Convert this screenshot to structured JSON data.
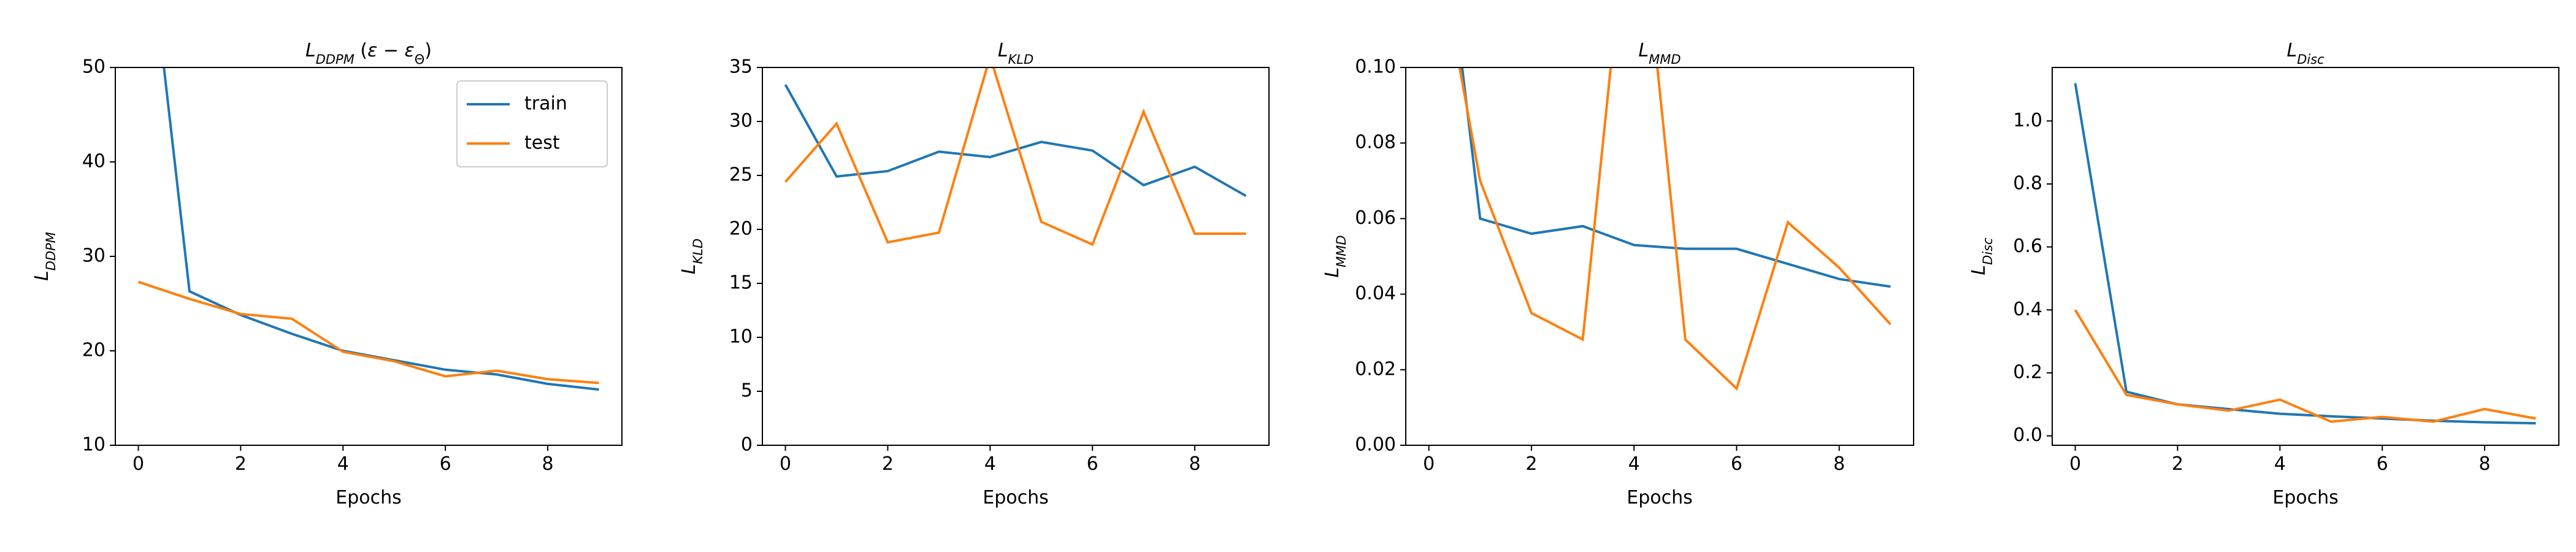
{
  "chart_data": [
    {
      "type": "line",
      "title": [
        {
          "text": "L",
          "italic": true
        },
        {
          "text": "DDPM",
          "italic": true,
          "sub": true
        },
        {
          "text": " ("
        },
        {
          "text": "ε",
          "italic": true
        },
        {
          "text": " − "
        },
        {
          "text": "ε",
          "italic": true
        },
        {
          "text": "Θ",
          "sub": true
        },
        {
          "text": ")"
        }
      ],
      "xlabel": "Epochs",
      "ylabel": [
        {
          "text": "L",
          "italic": true
        },
        {
          "text": "DDPM",
          "italic": true,
          "sub": true
        }
      ],
      "x": [
        0,
        1,
        2,
        3,
        4,
        5,
        6,
        7,
        8,
        9
      ],
      "xlim": [
        -0.45,
        9.45
      ],
      "xticks": [
        0,
        2,
        4,
        6,
        8
      ],
      "ylim": [
        10,
        50
      ],
      "yticks": [
        10,
        20,
        30,
        40,
        50
      ],
      "legend": "upper right",
      "series": [
        {
          "name": "train",
          "color": "#1f77b4",
          "values": [
            73.7,
            26.3,
            23.8,
            21.8,
            20.0,
            19.0,
            18.0,
            17.5,
            16.5,
            15.9
          ]
        },
        {
          "name": "test",
          "color": "#ff7f0e",
          "values": [
            27.3,
            25.5,
            23.9,
            23.4,
            19.9,
            18.9,
            17.3,
            17.9,
            17.0,
            16.6
          ]
        }
      ]
    },
    {
      "type": "line",
      "title": [
        {
          "text": "L",
          "italic": true
        },
        {
          "text": "KLD",
          "italic": true,
          "sub": true
        }
      ],
      "xlabel": "Epochs",
      "ylabel": [
        {
          "text": "L",
          "italic": true
        },
        {
          "text": "KLD",
          "italic": true,
          "sub": true
        }
      ],
      "x": [
        0,
        1,
        2,
        3,
        4,
        5,
        6,
        7,
        8,
        9
      ],
      "xlim": [
        -0.45,
        9.45
      ],
      "xticks": [
        0,
        2,
        4,
        6,
        8
      ],
      "ylim": [
        0,
        35
      ],
      "yticks": [
        0,
        5,
        10,
        15,
        20,
        25,
        30,
        35
      ],
      "series": [
        {
          "name": "train",
          "color": "#1f77b4",
          "values": [
            33.4,
            24.9,
            25.4,
            27.2,
            26.7,
            28.1,
            27.3,
            24.1,
            25.8,
            23.1
          ]
        },
        {
          "name": "test",
          "color": "#ff7f0e",
          "values": [
            24.4,
            29.8,
            18.8,
            19.7,
            36.0,
            20.7,
            18.6,
            30.9,
            19.6,
            19.6
          ]
        }
      ]
    },
    {
      "type": "line",
      "title": [
        {
          "text": "L",
          "italic": true
        },
        {
          "text": "MMD",
          "italic": true,
          "sub": true
        }
      ],
      "xlabel": "Epochs",
      "ylabel": [
        {
          "text": "L",
          "italic": true
        },
        {
          "text": "MMD",
          "italic": true,
          "sub": true
        }
      ],
      "x": [
        0,
        1,
        2,
        3,
        4,
        5,
        6,
        7,
        8,
        9
      ],
      "xlim": [
        -0.45,
        9.45
      ],
      "xticks": [
        0,
        2,
        4,
        6,
        8
      ],
      "ylim": [
        0,
        0.1
      ],
      "yticks": [
        {
          "value": 0,
          "label": "0.00"
        },
        {
          "value": 0.02,
          "label": "0.02"
        },
        {
          "value": 0.04,
          "label": "0.04"
        },
        {
          "value": 0.06,
          "label": "0.06"
        },
        {
          "value": 0.08,
          "label": "0.08"
        },
        {
          "value": 0.1,
          "label": "0.10"
        }
      ],
      "series": [
        {
          "name": "train",
          "color": "#1f77b4",
          "values": [
            0.174,
            0.06,
            0.056,
            0.058,
            0.053,
            0.052,
            0.052,
            0.048,
            0.044,
            0.042
          ]
        },
        {
          "name": "test",
          "color": "#ff7f0e",
          "values": [
            0.145,
            0.07,
            0.035,
            0.028,
            0.16,
            0.028,
            0.015,
            0.059,
            0.047,
            0.032
          ]
        }
      ]
    },
    {
      "type": "line",
      "title": [
        {
          "text": "L",
          "italic": true
        },
        {
          "text": "Disc",
          "italic": true,
          "sub": true
        }
      ],
      "xlabel": "Epochs",
      "ylabel": [
        {
          "text": "L",
          "italic": true
        },
        {
          "text": "Disc",
          "italic": true,
          "sub": true
        }
      ],
      "x": [
        0,
        1,
        2,
        3,
        4,
        5,
        6,
        7,
        8,
        9
      ],
      "xlim": [
        -0.45,
        9.45
      ],
      "xticks": [
        0,
        2,
        4,
        6,
        8
      ],
      "ylim": [
        -0.03,
        1.17
      ],
      "yticks": [
        {
          "value": 0,
          "label": "0.0"
        },
        {
          "value": 0.2,
          "label": "0.2"
        },
        {
          "value": 0.4,
          "label": "0.4"
        },
        {
          "value": 0.6,
          "label": "0.6"
        },
        {
          "value": 0.8,
          "label": "0.8"
        },
        {
          "value": 1.0,
          "label": "1.0"
        }
      ],
      "series": [
        {
          "name": "train",
          "color": "#1f77b4",
          "values": [
            1.12,
            0.14,
            0.1,
            0.085,
            0.07,
            0.062,
            0.055,
            0.048,
            0.043,
            0.04
          ]
        },
        {
          "name": "test",
          "color": "#ff7f0e",
          "values": [
            0.4,
            0.13,
            0.1,
            0.08,
            0.115,
            0.045,
            0.06,
            0.045,
            0.085,
            0.055
          ]
        }
      ]
    }
  ]
}
